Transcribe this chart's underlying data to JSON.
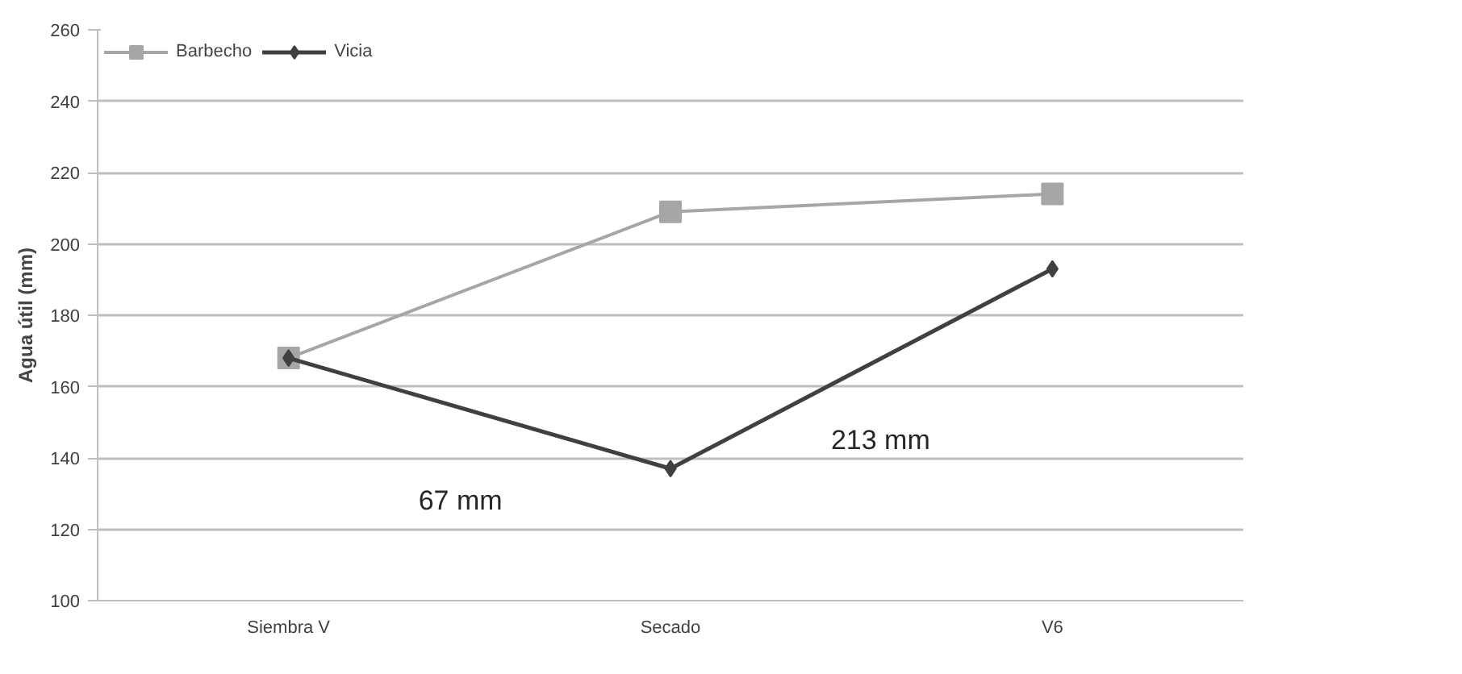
{
  "chart_data": {
    "type": "line",
    "ylabel": "Agua útil (mm)",
    "categories": [
      "Siembra V",
      "Secado",
      "V6"
    ],
    "series": [
      {
        "name": "Barbecho",
        "color": "#a6a6a6",
        "marker": "square",
        "values": [
          168,
          209,
          214
        ]
      },
      {
        "name": "Vicia",
        "color": "#404040",
        "marker": "diamond",
        "values": [
          168,
          137,
          193
        ]
      }
    ],
    "ylim": [
      100,
      260
    ],
    "yticks": [
      100,
      120,
      140,
      160,
      180,
      200,
      220,
      240,
      260
    ],
    "grid": "y",
    "legend": "top left",
    "annotations": [
      "67 mm",
      "213 mm"
    ]
  }
}
